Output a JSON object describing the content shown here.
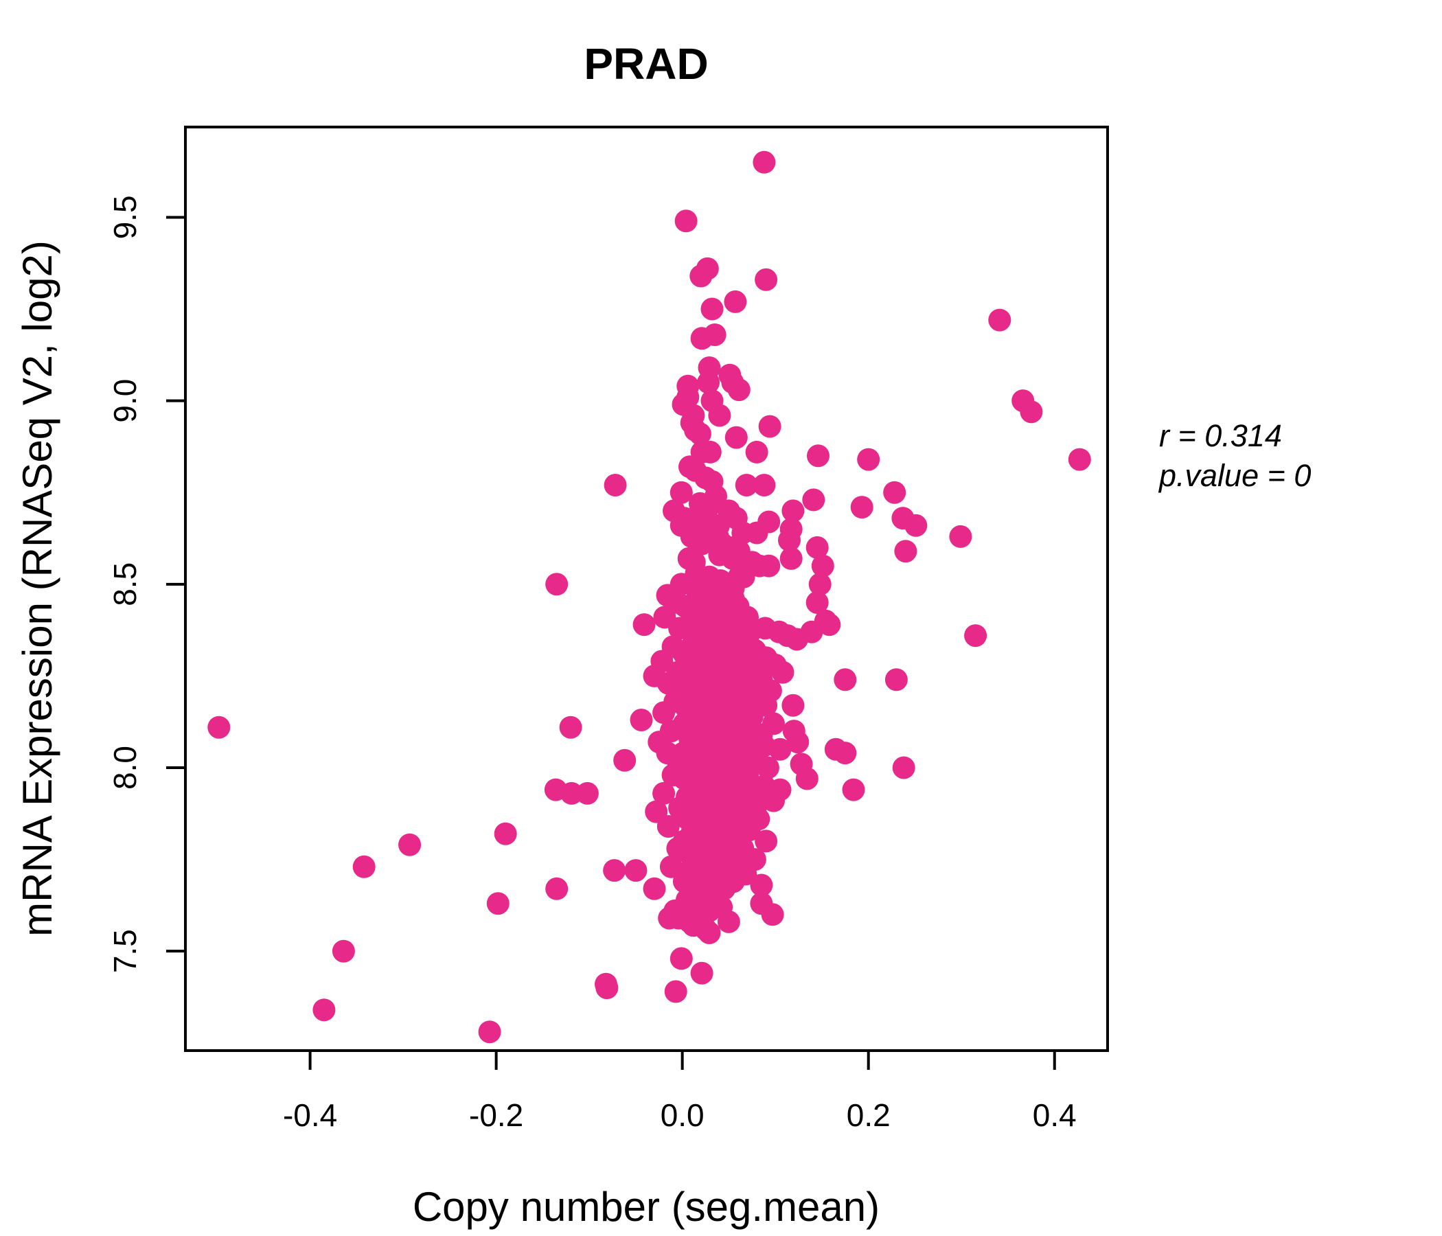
{
  "chart_data": {
    "type": "scatter",
    "title": "PRAD",
    "title_color": "#EA2A8E",
    "xlabel": "Copy number (seg.mean)",
    "ylabel": "mRNA Expression (RNASeq V2, log2)",
    "annotation": {
      "line1": "r = 0.314",
      "line2": "p.value = 0"
    },
    "xlim": [
      -0.534,
      0.457
    ],
    "ylim": [
      7.229,
      9.746
    ],
    "xticks": [
      -0.4,
      -0.2,
      0.0,
      0.2,
      0.4
    ],
    "yticks": [
      7.5,
      8.0,
      8.5,
      9.0,
      9.5
    ],
    "grid": false,
    "legend": "none",
    "point_color": "#E7298A",
    "point_radius": 16.5,
    "points": [
      [
        0.088,
        9.65
      ],
      [
        0.004,
        9.49
      ],
      [
        0.027,
        9.36
      ],
      [
        0.02,
        9.34
      ],
      [
        0.09,
        9.33
      ],
      [
        0.057,
        9.27
      ],
      [
        0.032,
        9.25
      ],
      [
        0.035,
        9.18
      ],
      [
        0.021,
        9.17
      ],
      [
        0.029,
        9.09
      ],
      [
        0.051,
        9.07
      ],
      [
        0.006,
        9.04
      ],
      [
        0.028,
        9.05
      ],
      [
        0.054,
        9.05
      ],
      [
        0.061,
        9.03
      ],
      [
        0.006,
        9.01
      ],
      [
        0.001,
        8.99
      ],
      [
        0.032,
        9.0
      ],
      [
        0.012,
        8.96
      ],
      [
        0.04,
        8.96
      ],
      [
        0.01,
        8.94
      ],
      [
        0.014,
        8.92
      ],
      [
        0.019,
        8.91
      ],
      [
        0.058,
        8.9
      ],
      [
        0.094,
        8.93
      ],
      [
        0.08,
        8.86
      ],
      [
        0.146,
        8.85
      ],
      [
        0.2,
        8.84
      ],
      [
        0.021,
        8.86
      ],
      [
        0.03,
        8.86
      ],
      [
        0.008,
        8.82
      ],
      [
        0.014,
        8.81
      ],
      [
        0.025,
        8.79
      ],
      [
        0.032,
        8.78
      ],
      [
        -0.072,
        8.77
      ],
      [
        -0.001,
        8.75
      ],
      [
        0.069,
        8.77
      ],
      [
        0.088,
        8.77
      ],
      [
        0.141,
        8.73
      ],
      [
        0.193,
        8.71
      ],
      [
        0.228,
        8.75
      ],
      [
        -0.009,
        8.7
      ],
      [
        0.019,
        8.72
      ],
      [
        0.028,
        8.71
      ],
      [
        -0.001,
        8.66
      ],
      [
        0.01,
        8.65
      ],
      [
        0.028,
        8.66
      ],
      [
        0.039,
        8.66
      ],
      [
        0.058,
        8.68
      ],
      [
        0.093,
        8.67
      ],
      [
        0.08,
        8.64
      ],
      [
        0.01,
        8.63
      ],
      [
        0.021,
        8.61
      ],
      [
        0.038,
        8.63
      ],
      [
        0.043,
        8.61
      ],
      [
        0.115,
        8.62
      ],
      [
        0.117,
        8.57
      ],
      [
        0.145,
        8.6
      ],
      [
        0.055,
        8.6
      ],
      [
        0.061,
        8.59
      ],
      [
        0.007,
        8.57
      ],
      [
        0.013,
        8.56
      ],
      [
        0.049,
        8.58
      ],
      [
        0.054,
        8.57
      ],
      [
        0.075,
        8.56
      ],
      [
        0.083,
        8.55
      ],
      [
        0.093,
        8.55
      ],
      [
        0.151,
        8.55
      ],
      [
        0.015,
        8.53
      ],
      [
        0.029,
        8.52
      ],
      [
        0.041,
        8.51
      ],
      [
        0.061,
        8.52
      ],
      [
        0.066,
        8.52
      ],
      [
        -0.001,
        8.5
      ],
      [
        0.01,
        8.5
      ],
      [
        0.021,
        8.48
      ],
      [
        0.032,
        8.47
      ],
      [
        0.05,
        8.5
      ],
      [
        0.055,
        8.49
      ],
      [
        0.148,
        8.5
      ],
      [
        0.154,
        8.4
      ],
      [
        -0.016,
        8.47
      ],
      [
        -0.009,
        8.45
      ],
      [
        -0.019,
        8.41
      ],
      [
        -0.041,
        8.39
      ],
      [
        -0.003,
        8.38
      ],
      [
        0.007,
        8.39
      ],
      [
        0.019,
        8.4
      ],
      [
        0.03,
        8.38
      ],
      [
        0.044,
        8.39
      ],
      [
        0.052,
        8.42
      ],
      [
        0.063,
        8.39
      ],
      [
        0.073,
        8.37
      ],
      [
        0.089,
        8.38
      ],
      [
        0.104,
        8.37
      ],
      [
        0.113,
        8.36
      ],
      [
        0.123,
        8.35
      ],
      [
        0.139,
        8.37
      ],
      [
        0.341,
        9.22
      ],
      [
        0.366,
        9.0
      ],
      [
        0.375,
        8.97
      ],
      [
        0.427,
        8.84
      ],
      [
        0.237,
        8.68
      ],
      [
        0.251,
        8.66
      ],
      [
        0.299,
        8.63
      ],
      [
        0.24,
        8.59
      ],
      [
        0.119,
        8.7
      ],
      [
        0.117,
        8.65
      ],
      [
        0.145,
        8.45
      ],
      [
        0.158,
        8.39
      ],
      [
        0.315,
        8.36
      ],
      [
        0.175,
        8.24
      ],
      [
        0.23,
        8.24
      ],
      [
        0.119,
        8.17
      ],
      [
        0.165,
        8.05
      ],
      [
        0.175,
        8.04
      ],
      [
        0.124,
        8.07
      ],
      [
        0.128,
        8.01
      ],
      [
        0.134,
        7.97
      ],
      [
        0.184,
        7.94
      ],
      [
        0.238,
        8.0
      ],
      [
        0.12,
        8.1
      ],
      [
        -0.498,
        8.11
      ],
      [
        -0.385,
        7.34
      ],
      [
        -0.364,
        7.5
      ],
      [
        -0.342,
        7.73
      ],
      [
        -0.293,
        7.79
      ],
      [
        -0.207,
        7.28
      ],
      [
        -0.198,
        7.63
      ],
      [
        -0.19,
        7.82
      ],
      [
        -0.136,
        7.94
      ],
      [
        -0.119,
        7.93
      ],
      [
        -0.102,
        7.93
      ],
      [
        -0.135,
        7.67
      ],
      [
        -0.12,
        8.11
      ],
      [
        -0.135,
        8.5
      ],
      [
        -0.073,
        7.72
      ],
      [
        -0.05,
        7.72
      ],
      [
        -0.03,
        7.67
      ],
      [
        -0.081,
        7.4
      ],
      [
        -0.062,
        8.02
      ],
      [
        -0.044,
        8.13
      ],
      [
        0.01,
        7.65
      ],
      [
        -0.014,
        7.59
      ],
      [
        -0.004,
        7.59
      ],
      [
        0.008,
        7.6
      ],
      [
        0.008,
        7.58
      ],
      [
        0.029,
        7.61
      ],
      [
        0.029,
        7.55
      ],
      [
        0.085,
        7.63
      ],
      [
        0.097,
        7.6
      ],
      [
        -0.001,
        7.48
      ],
      [
        0.021,
        7.44
      ],
      [
        -0.082,
        7.41
      ],
      [
        -0.007,
        7.39
      ],
      [
        0.016,
        8.46
      ],
      [
        0.04,
        8.45
      ],
      [
        0.003,
        8.44
      ],
      [
        0.06,
        8.44
      ],
      [
        0.027,
        8.43
      ],
      [
        0.048,
        8.42
      ],
      [
        0.012,
        8.41
      ],
      [
        0.07,
        8.41
      ],
      [
        0.035,
        8.4
      ],
      [
        0.008,
        8.43
      ],
      [
        0.055,
        8.46
      ],
      [
        0.024,
        8.37
      ],
      [
        0.068,
        8.36
      ],
      [
        0.046,
        8.36
      ],
      [
        0.015,
        8.36
      ],
      [
        0.036,
        8.74
      ],
      [
        0.05,
        8.7
      ],
      [
        0.002,
        8.68
      ],
      [
        0.065,
        8.64
      ],
      [
        0.04,
        8.58
      ],
      [
        0.018,
        8.68
      ],
      [
        0.012,
        8.34
      ],
      [
        0.035,
        8.34
      ],
      [
        -0.01,
        8.33
      ],
      [
        0.052,
        8.33
      ],
      [
        0.022,
        8.32
      ],
      [
        0.078,
        8.32
      ],
      [
        0.002,
        8.31
      ],
      [
        0.043,
        8.31
      ],
      [
        0.09,
        8.3
      ],
      [
        0.017,
        8.3
      ],
      [
        0.06,
        8.29
      ],
      [
        -0.022,
        8.29
      ],
      [
        0.031,
        8.28
      ],
      [
        0.1,
        8.28
      ],
      [
        0.008,
        8.27
      ],
      [
        0.048,
        8.27
      ],
      [
        0.07,
        8.26
      ],
      [
        -0.005,
        8.26
      ],
      [
        0.026,
        8.25
      ],
      [
        0.055,
        8.25
      ],
      [
        0.085,
        8.24
      ],
      [
        0.015,
        8.24
      ],
      [
        0.038,
        8.23
      ],
      [
        -0.015,
        8.23
      ],
      [
        0.065,
        8.22
      ],
      [
        0.005,
        8.22
      ],
      [
        0.045,
        8.21
      ],
      [
        0.095,
        8.21
      ],
      [
        0.024,
        8.2
      ],
      [
        0.073,
        8.2
      ],
      [
        0.033,
        8.35
      ],
      [
        0.058,
        8.3
      ],
      [
        -0.03,
        8.25
      ],
      [
        0.108,
        8.26
      ],
      [
        0.02,
        8.28
      ],
      [
        0.04,
        8.25
      ],
      [
        0.01,
        8.21
      ],
      [
        0.062,
        8.34
      ],
      [
        0.082,
        8.28
      ],
      [
        0.05,
        8.22
      ],
      [
        0.015,
        8.19
      ],
      [
        0.042,
        8.19
      ],
      [
        -0.008,
        8.18
      ],
      [
        0.068,
        8.18
      ],
      [
        0.025,
        8.17
      ],
      [
        0.09,
        8.17
      ],
      [
        0.005,
        8.16
      ],
      [
        0.05,
        8.16
      ],
      [
        0.032,
        8.15
      ],
      [
        -0.02,
        8.15
      ],
      [
        0.075,
        8.14
      ],
      [
        0.012,
        8.14
      ],
      [
        0.058,
        8.13
      ],
      [
        0.028,
        8.13
      ],
      [
        0.098,
        8.12
      ],
      [
        0.002,
        8.12
      ],
      [
        0.045,
        8.11
      ],
      [
        0.02,
        8.11
      ],
      [
        0.065,
        8.1
      ],
      [
        -0.012,
        8.1
      ],
      [
        0.036,
        8.09
      ],
      [
        0.085,
        8.09
      ],
      [
        0.008,
        8.08
      ],
      [
        0.055,
        8.08
      ],
      [
        0.03,
        8.07
      ],
      [
        -0.025,
        8.07
      ],
      [
        0.07,
        8.06
      ],
      [
        0.018,
        8.06
      ],
      [
        0.048,
        8.05
      ],
      [
        0.105,
        8.05
      ],
      [
        0.001,
        8.04
      ],
      [
        0.04,
        8.04
      ],
      [
        0.025,
        8.03
      ],
      [
        0.08,
        8.03
      ],
      [
        -0.005,
        8.02
      ],
      [
        0.06,
        8.02
      ],
      [
        0.035,
        8.01
      ],
      [
        0.015,
        8.01
      ],
      [
        0.092,
        8.0
      ],
      [
        0.005,
        8.0
      ],
      [
        0.05,
        8.18
      ],
      [
        0.022,
        8.16
      ],
      [
        0.072,
        8.12
      ],
      [
        0.038,
        8.12
      ],
      [
        0.01,
        8.09
      ],
      [
        0.062,
        8.07
      ],
      [
        0.03,
        8.05
      ],
      [
        0.088,
        8.06
      ],
      [
        -0.016,
        8.04
      ],
      [
        0.045,
        8.02
      ],
      [
        0.02,
        8.0
      ],
      [
        0.068,
        8.0
      ],
      [
        0.055,
        8.15
      ],
      [
        0.078,
        8.19
      ],
      [
        0.042,
        8.08
      ],
      [
        0.01,
        7.99
      ],
      [
        0.048,
        7.99
      ],
      [
        -0.01,
        7.98
      ],
      [
        0.07,
        7.98
      ],
      [
        0.028,
        7.97
      ],
      [
        0.002,
        7.97
      ],
      [
        0.055,
        7.96
      ],
      [
        0.022,
        7.96
      ],
      [
        0.088,
        7.95
      ],
      [
        0.038,
        7.95
      ],
      [
        0.015,
        7.94
      ],
      [
        0.062,
        7.94
      ],
      [
        -0.02,
        7.93
      ],
      [
        0.042,
        7.93
      ],
      [
        0.005,
        7.92
      ],
      [
        0.075,
        7.92
      ],
      [
        0.03,
        7.91
      ],
      [
        0.098,
        7.91
      ],
      [
        0.018,
        7.9
      ],
      [
        0.052,
        7.9
      ],
      [
        -0.003,
        7.89
      ],
      [
        0.035,
        7.89
      ],
      [
        0.068,
        7.88
      ],
      [
        0.012,
        7.88
      ],
      [
        0.045,
        7.87
      ],
      [
        0.025,
        7.87
      ],
      [
        0.082,
        7.86
      ],
      [
        0.006,
        7.86
      ],
      [
        0.058,
        7.85
      ],
      [
        0.032,
        7.85
      ],
      [
        -0.015,
        7.84
      ],
      [
        0.048,
        7.84
      ],
      [
        0.02,
        7.83
      ],
      [
        0.072,
        7.83
      ],
      [
        0.038,
        7.82
      ],
      [
        0.01,
        7.82
      ],
      [
        0.06,
        7.81
      ],
      [
        0.028,
        7.81
      ],
      [
        0.002,
        7.8
      ],
      [
        0.09,
        7.8
      ],
      [
        0.044,
        7.98
      ],
      [
        0.065,
        7.96
      ],
      [
        0.033,
        7.94
      ],
      [
        0.08,
        7.9
      ],
      [
        0.055,
        7.88
      ],
      [
        0.024,
        7.92
      ],
      [
        0.016,
        7.85
      ],
      [
        0.042,
        7.8
      ],
      [
        0.105,
        7.94
      ],
      [
        -0.028,
        7.88
      ],
      [
        0.015,
        7.79
      ],
      [
        0.045,
        7.79
      ],
      [
        -0.005,
        7.78
      ],
      [
        0.065,
        7.78
      ],
      [
        0.025,
        7.77
      ],
      [
        0.005,
        7.77
      ],
      [
        0.052,
        7.76
      ],
      [
        0.032,
        7.76
      ],
      [
        0.012,
        7.75
      ],
      [
        0.078,
        7.75
      ],
      [
        0.04,
        7.74
      ],
      [
        0.02,
        7.74
      ],
      [
        -0.012,
        7.73
      ],
      [
        0.058,
        7.73
      ],
      [
        0.03,
        7.72
      ],
      [
        0.008,
        7.72
      ],
      [
        0.048,
        7.71
      ],
      [
        0.068,
        7.71
      ],
      [
        0.018,
        7.7
      ],
      [
        0.038,
        7.7
      ],
      [
        0.002,
        7.69
      ],
      [
        0.055,
        7.69
      ],
      [
        0.028,
        7.68
      ],
      [
        0.085,
        7.68
      ],
      [
        0.01,
        7.67
      ],
      [
        0.045,
        7.67
      ],
      [
        0.022,
        7.66
      ],
      [
        0.035,
        7.65
      ],
      [
        0.005,
        7.64
      ],
      [
        0.03,
        7.63
      ],
      [
        0.018,
        7.62
      ],
      [
        0.042,
        7.62
      ],
      [
        -0.008,
        7.61
      ],
      [
        0.012,
        7.57
      ],
      [
        0.05,
        7.58
      ],
      [
        0.025,
        7.56
      ]
    ]
  }
}
